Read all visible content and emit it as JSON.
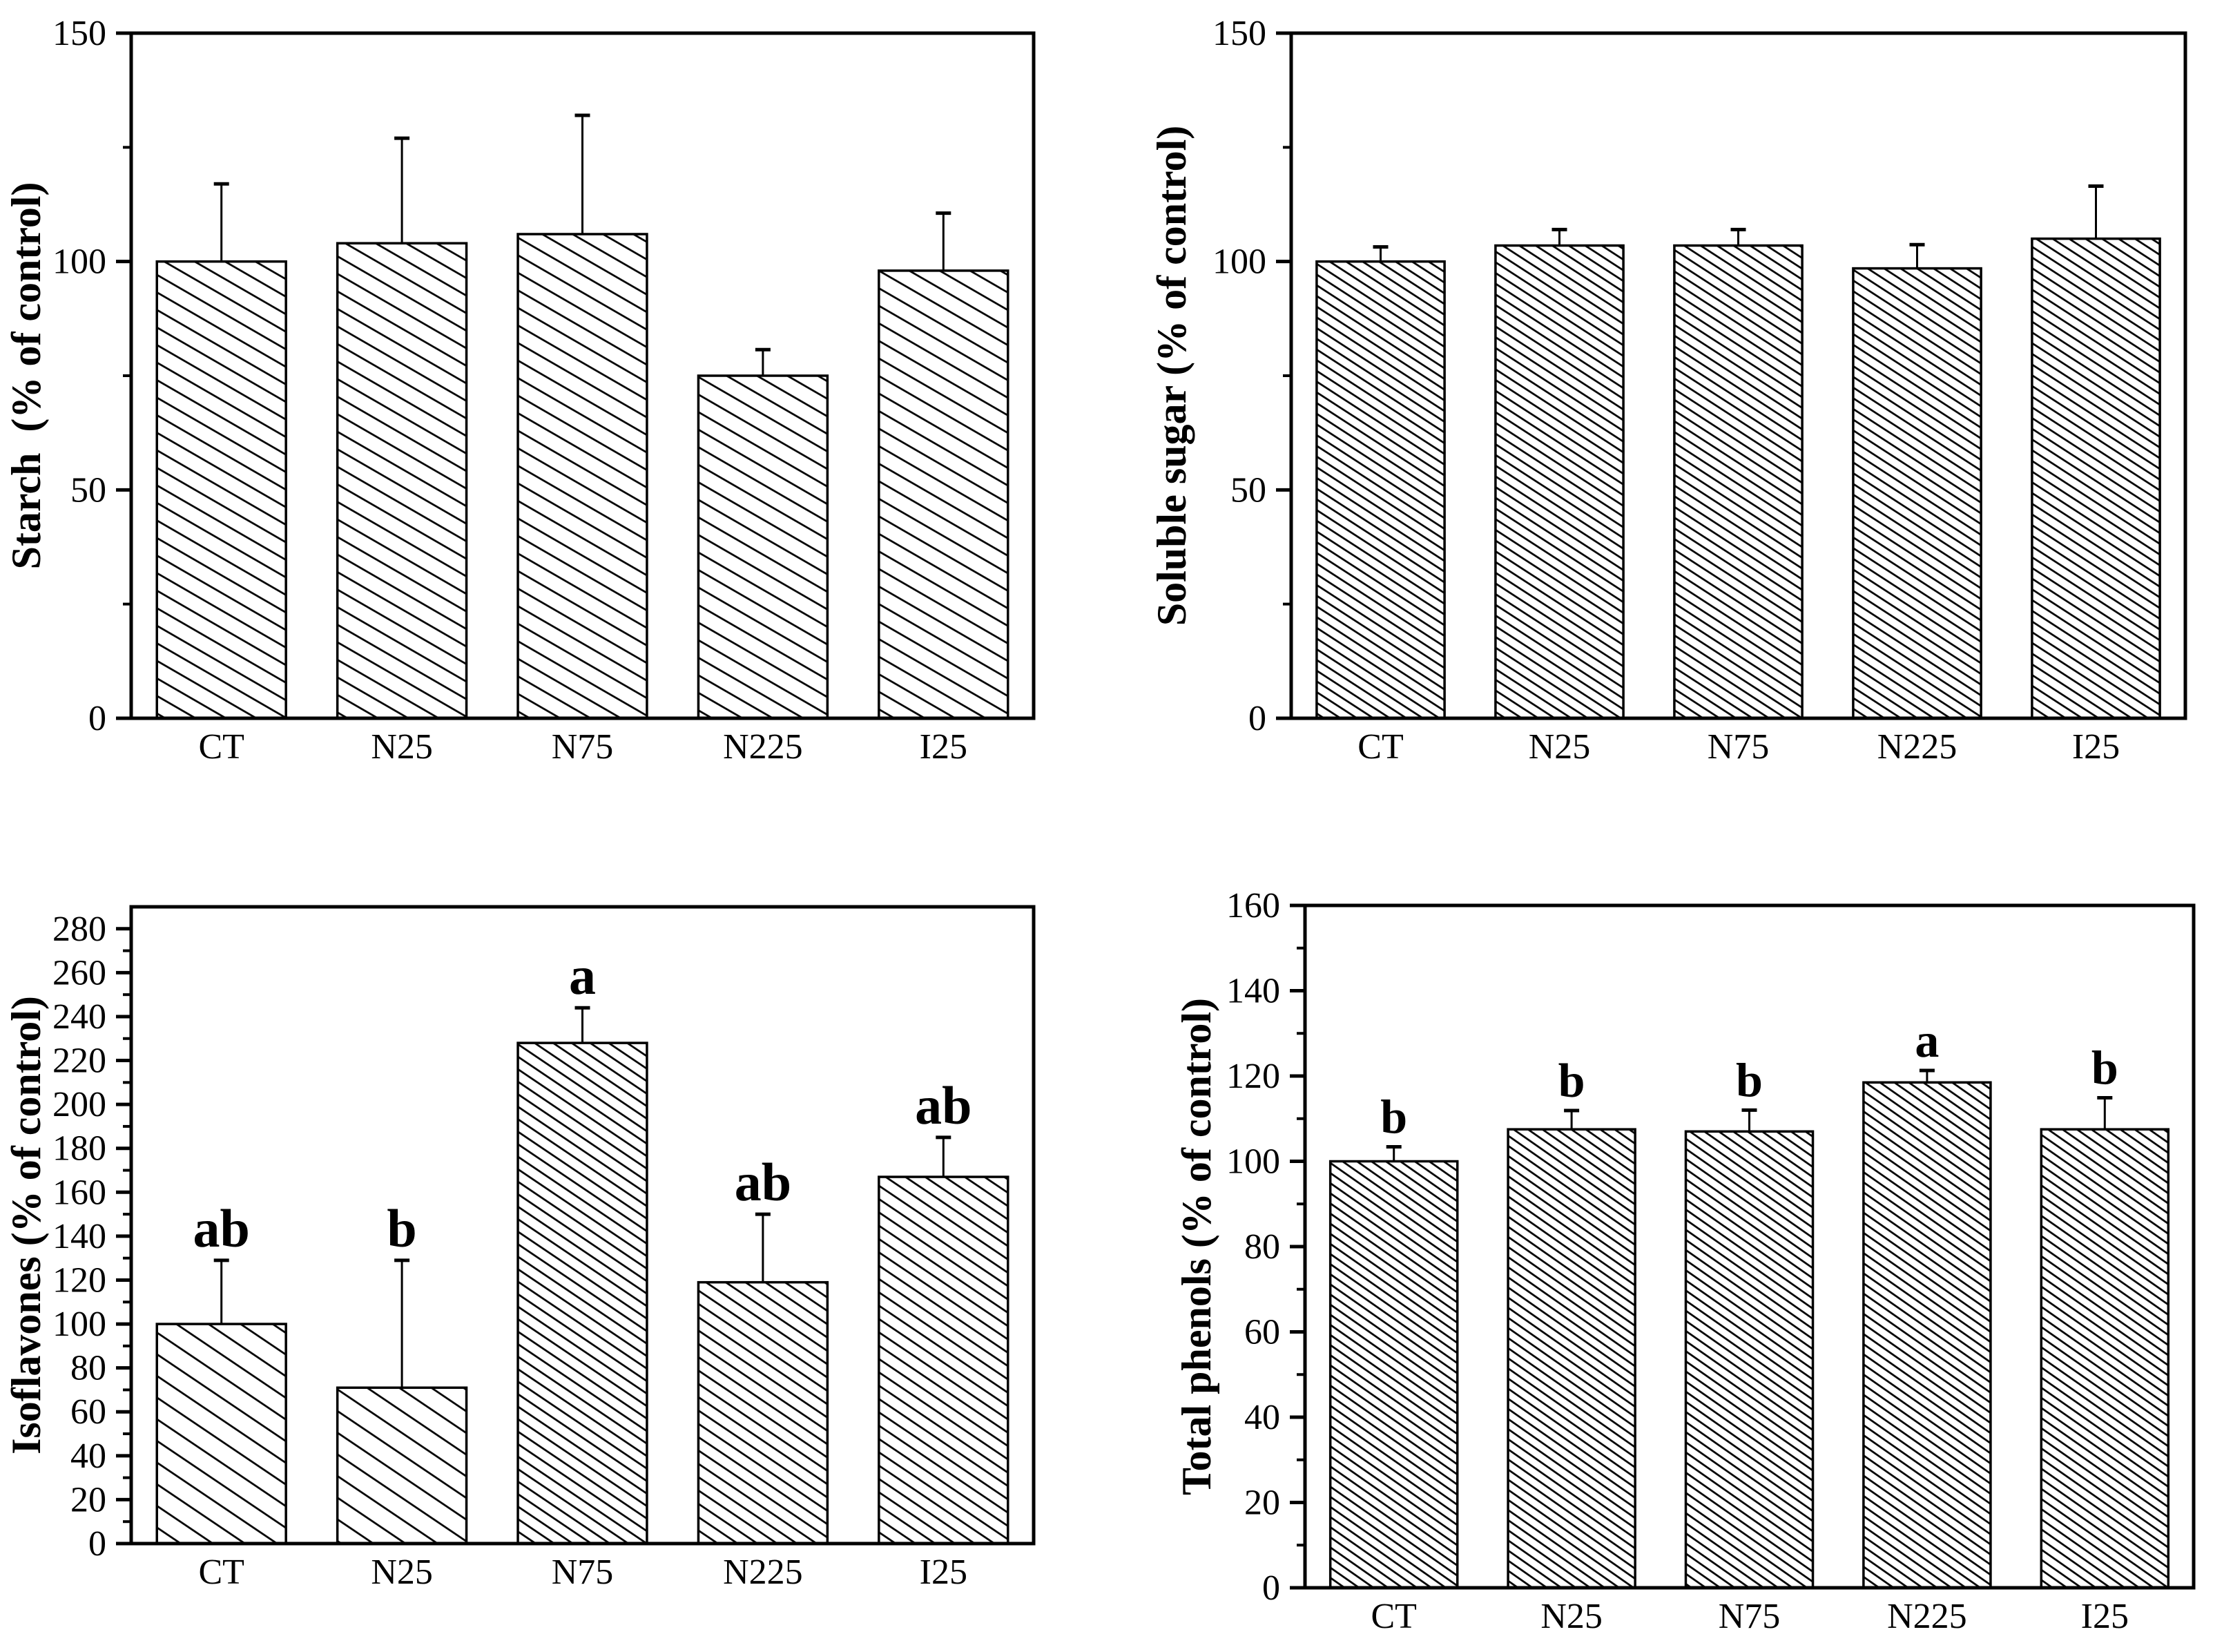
{
  "figure": {
    "background": "#ffffff",
    "ink_color": "#000000",
    "description": "Four-panel hatched bar chart figure, percent of control for five treatments"
  },
  "chart_data": [
    {
      "type": "bar",
      "panel": "top-left",
      "ylabel": "Starch  (% of control)",
      "categories": [
        "CT",
        "N25",
        "N75",
        "N225",
        "I25"
      ],
      "values": [
        100,
        104,
        106,
        75,
        98
      ],
      "errors_plus": [
        17,
        23,
        26,
        5.7,
        12.6
      ],
      "sig_letters": [
        "",
        "",
        "",
        "",
        ""
      ],
      "ylim": [
        0,
        150
      ],
      "ytick_major": 50,
      "ytick_minor": 25,
      "ytick_labels": [
        "0",
        "50",
        "100",
        "150"
      ],
      "grid": false,
      "bar_fill": "diagonal-hatch",
      "legend": "none"
    },
    {
      "type": "bar",
      "panel": "top-right",
      "ylabel": "Soluble sugar (% of control)",
      "categories": [
        "CT",
        "N25",
        "N75",
        "N225",
        "I25"
      ],
      "values": [
        100,
        103.5,
        103.5,
        98.5,
        105
      ],
      "errors_plus": [
        3.2,
        3.5,
        3.5,
        5.2,
        11.5
      ],
      "sig_letters": [
        "",
        "",
        "",
        "",
        ""
      ],
      "ylim": [
        0,
        150
      ],
      "ytick_major": 50,
      "ytick_minor": 25,
      "ytick_labels": [
        "0",
        "50",
        "100",
        "150"
      ],
      "grid": false,
      "bar_fill": "diagonal-hatch",
      "legend": "none"
    },
    {
      "type": "bar",
      "panel": "bottom-left",
      "ylabel": "Isoflavones (% of control)",
      "categories": [
        "CT",
        "N25",
        "N75",
        "N225",
        "I25"
      ],
      "values": [
        100,
        71,
        228,
        119,
        167
      ],
      "errors_plus": [
        29,
        58,
        16,
        31,
        18
      ],
      "sig_letters": [
        "ab",
        "b",
        "a",
        "ab",
        "ab"
      ],
      "ylim": [
        0,
        290
      ],
      "ytick_major": 20,
      "ytick_minor": 10,
      "ytick_labels": [
        "0",
        "20",
        "40",
        "60",
        "80",
        "100",
        "120",
        "140",
        "160",
        "180",
        "200",
        "220",
        "240",
        "260",
        "280"
      ],
      "grid": false,
      "bar_fill": "diagonal-hatch",
      "legend": "none"
    },
    {
      "type": "bar",
      "panel": "bottom-right",
      "ylabel": "Total phenols (% of control)",
      "categories": [
        "CT",
        "N25",
        "N75",
        "N225",
        "I25"
      ],
      "values": [
        100,
        107.5,
        107,
        118.5,
        107.5
      ],
      "errors_plus": [
        3.4,
        4.4,
        5,
        2.8,
        7.4
      ],
      "sig_letters": [
        "b",
        "b",
        "b",
        "a",
        "b"
      ],
      "ylim": [
        0,
        160
      ],
      "ytick_major": 20,
      "ytick_minor": 10,
      "ytick_labels": [
        "0",
        "20",
        "40",
        "60",
        "80",
        "100",
        "120",
        "140",
        "160"
      ],
      "grid": false,
      "bar_fill": "diagonal-hatch",
      "legend": "none"
    }
  ]
}
